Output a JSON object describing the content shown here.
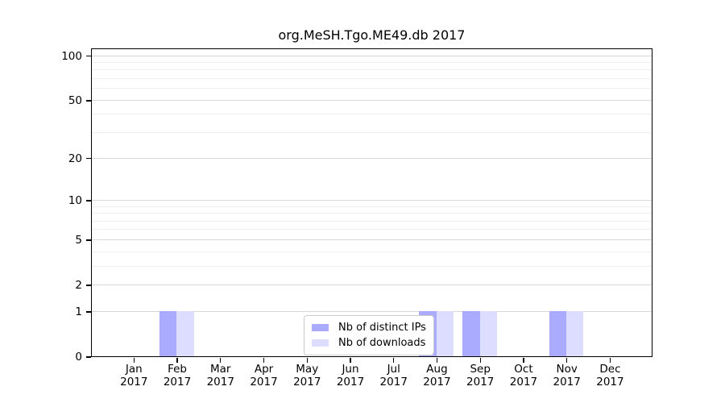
{
  "chart_data": {
    "type": "bar",
    "title": "org.MeSH.Tgo.ME49.db 2017",
    "categories": [
      "Jan",
      "Feb",
      "Mar",
      "Apr",
      "May",
      "Jun",
      "Jul",
      "Aug",
      "Sep",
      "Oct",
      "Nov",
      "Dec"
    ],
    "year_label": "2017",
    "series": [
      {
        "name": "Nb of distinct IPs",
        "color": "#aaaaff",
        "values": [
          0,
          1,
          0,
          0,
          0,
          0,
          0,
          1,
          1,
          0,
          1,
          0
        ]
      },
      {
        "name": "Nb of downloads",
        "color": "#ddddff",
        "values": [
          0,
          1,
          0,
          0,
          0,
          0,
          0,
          1,
          1,
          0,
          1,
          0
        ]
      }
    ],
    "y_axis": {
      "scale": "log1p",
      "ticks": [
        0,
        1,
        2,
        5,
        10,
        20,
        50,
        100
      ],
      "minor_gridlines": [
        3,
        4,
        6,
        7,
        8,
        9,
        30,
        40,
        60,
        70,
        80,
        90
      ],
      "range": [
        0,
        113
      ]
    },
    "xlabel": "",
    "ylabel": "",
    "legend": {
      "position": "bottom-center"
    },
    "grid": {
      "major_color": "#d8d8d8",
      "minor_color": "#eeeeee",
      "vertical": false
    }
  }
}
